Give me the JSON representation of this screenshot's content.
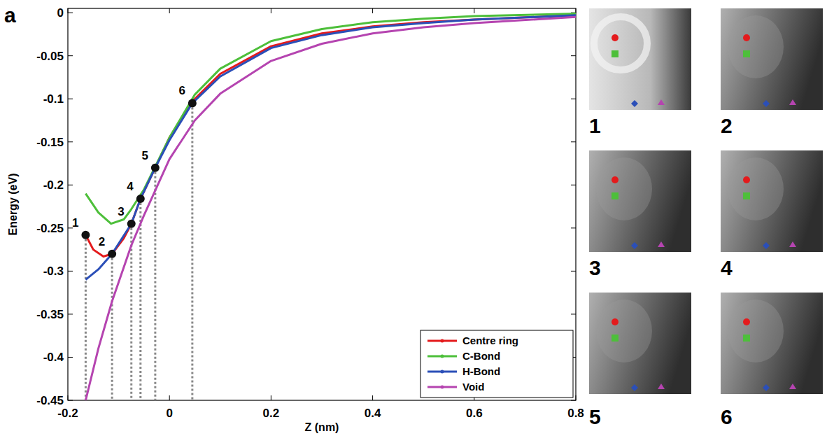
{
  "chart_data": {
    "type": "line",
    "panel_label": "a",
    "x_label": "Z (nm)",
    "y_label": "Energy (eV)",
    "xlim": [
      -0.2,
      0.8
    ],
    "ylim": [
      -0.45,
      0.005
    ],
    "xticks": [
      -0.2,
      0,
      0.2,
      0.4,
      0.6,
      0.8
    ],
    "yticks": [
      0,
      -0.05,
      -0.1,
      -0.15,
      -0.2,
      -0.25,
      -0.3,
      -0.35,
      -0.4,
      -0.45
    ],
    "legend": "lower right",
    "series": [
      {
        "name": "Centre ring",
        "color": "#e41a1c",
        "line_style": "solid",
        "x": [
          -0.165,
          -0.15,
          -0.13,
          -0.113,
          -0.09,
          -0.075,
          -0.057,
          -0.028,
          0,
          0.045,
          0.1,
          0.2,
          0.3,
          0.4,
          0.5,
          0.6,
          0.8
        ],
        "values": [
          -0.258,
          -0.275,
          -0.283,
          -0.28,
          -0.262,
          -0.245,
          -0.216,
          -0.18,
          -0.145,
          -0.103,
          -0.071,
          -0.039,
          -0.024,
          -0.016,
          -0.011,
          -0.008,
          -0.003
        ]
      },
      {
        "name": "C-Bond",
        "color": "#4dbf3a",
        "line_style": "solid",
        "x": [
          -0.165,
          -0.14,
          -0.115,
          -0.09,
          -0.075,
          -0.05,
          0,
          0.05,
          0.1,
          0.2,
          0.3,
          0.4,
          0.5,
          0.6,
          0.8
        ],
        "values": [
          -0.21,
          -0.232,
          -0.245,
          -0.24,
          -0.228,
          -0.205,
          -0.145,
          -0.095,
          -0.065,
          -0.033,
          -0.019,
          -0.011,
          -0.007,
          -0.004,
          -0.001
        ]
      },
      {
        "name": "H-Bond",
        "color": "#2b4fb8",
        "line_style": "solid",
        "x": [
          -0.165,
          -0.14,
          -0.113,
          -0.075,
          -0.057,
          -0.028,
          0,
          0.045,
          0.1,
          0.2,
          0.3,
          0.4,
          0.5,
          0.6,
          0.8
        ],
        "values": [
          -0.31,
          -0.298,
          -0.28,
          -0.245,
          -0.216,
          -0.18,
          -0.148,
          -0.105,
          -0.074,
          -0.041,
          -0.026,
          -0.017,
          -0.012,
          -0.008,
          -0.003
        ]
      },
      {
        "name": "Void",
        "color": "#b544b0",
        "line_style": "solid",
        "x": [
          -0.165,
          -0.14,
          -0.113,
          -0.075,
          -0.05,
          0,
          0.05,
          0.1,
          0.2,
          0.3,
          0.4,
          0.5,
          0.6,
          0.8
        ],
        "values": [
          -0.45,
          -0.39,
          -0.335,
          -0.27,
          -0.235,
          -0.17,
          -0.125,
          -0.094,
          -0.056,
          -0.036,
          -0.024,
          -0.017,
          -0.012,
          -0.005
        ]
      }
    ],
    "annotations": [
      {
        "label": "1",
        "x": -0.165,
        "y": -0.258
      },
      {
        "label": "2",
        "x": -0.113,
        "y": -0.28
      },
      {
        "label": "3",
        "x": -0.075,
        "y": -0.245
      },
      {
        "label": "4",
        "x": -0.057,
        "y": -0.216
      },
      {
        "label": "5",
        "x": -0.028,
        "y": -0.18
      },
      {
        "label": "6",
        "x": 0.045,
        "y": -0.105
      }
    ],
    "image_panels": [
      "1",
      "2",
      "3",
      "4",
      "5",
      "6"
    ]
  }
}
